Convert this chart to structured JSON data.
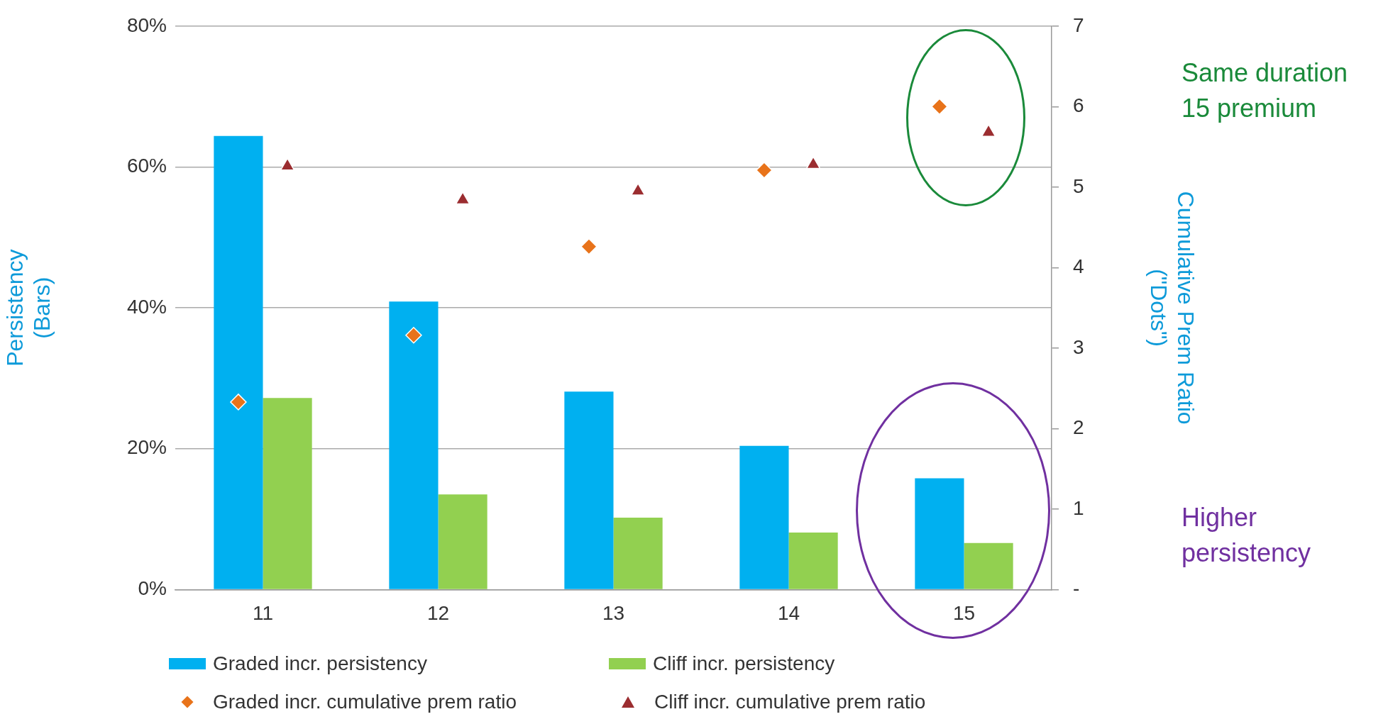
{
  "chart_data": {
    "type": "bar",
    "categories": [
      "11",
      "12",
      "13",
      "14",
      "15"
    ],
    "ylabel": "Persistency (Bars)",
    "y2label": "Cumulative Prem Ratio (\"Dots\")",
    "ylim": [
      0,
      80
    ],
    "yticks": [
      {
        "value": 0,
        "label": "0%"
      },
      {
        "value": 20,
        "label": "20%"
      },
      {
        "value": 40,
        "label": "40%"
      },
      {
        "value": 60,
        "label": "60%"
      },
      {
        "value": 80,
        "label": "80%"
      }
    ],
    "y2lim": [
      0,
      7
    ],
    "y2ticks": [
      {
        "value": 0,
        "label": "-"
      },
      1,
      2,
      3,
      4,
      5,
      6,
      7
    ],
    "grid": "y",
    "legend": "bottom",
    "series": [
      {
        "name": "Graded incr. persistency",
        "color": "#00b0f0",
        "values": [
          64.4,
          40.9,
          28.1,
          20.4,
          15.8
        ]
      },
      {
        "name": "Cliff incr. persistency",
        "color": "#92d050",
        "values": [
          27.2,
          13.5,
          10.2,
          8.1,
          6.6
        ]
      },
      {
        "name": "Graded incr. cumulative prem ratio",
        "type": "scatter",
        "axis": "y2",
        "marker": "diamond",
        "color": "#e8731a",
        "values": [
          2.33,
          3.16,
          4.26,
          5.21,
          6.0
        ]
      },
      {
        "name": "Cliff incr. cumulative prem ratio",
        "type": "scatter",
        "axis": "y2",
        "marker": "triangle",
        "color": "#9b2d30",
        "values": [
          5.26,
          4.84,
          4.95,
          5.28,
          5.68
        ]
      }
    ],
    "annotations": [
      "Same duration 15 premium",
      "Higher persistency"
    ]
  }
}
